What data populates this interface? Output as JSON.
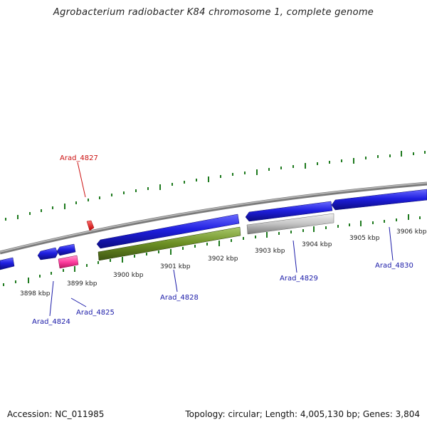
{
  "title": "Agrobacterium radiobacter K84 chromosome 1, complete genome",
  "footer": {
    "accession": "Accession: NC_011985",
    "summary": "Topology: circular; Length: 4,005,130 bp; Genes: 3,804"
  },
  "colors": {
    "backbone": "#8c8c8c",
    "tick": "#1e7a1e",
    "gene_blue": "#1f1fe0",
    "gene_olive": "#6b8e23",
    "gene_pink": "#ff3fa0",
    "gene_red": "#ee1111",
    "gene_gray": "#c4c4c4",
    "label_blue": "#1a1aa8",
    "label_red": "#cc1111"
  },
  "ticks": [
    "3898 kbp",
    "3899 kbp",
    "3900 kbp",
    "3901 kbp",
    "3902 kbp",
    "3903 kbp",
    "3904 kbp",
    "3905 kbp",
    "3906 kbp"
  ],
  "gene_labels": [
    "Arad_4824",
    "Arad_4825",
    "Arad_4827",
    "Arad_4828",
    "Arad_4829",
    "Arad_4830"
  ]
}
